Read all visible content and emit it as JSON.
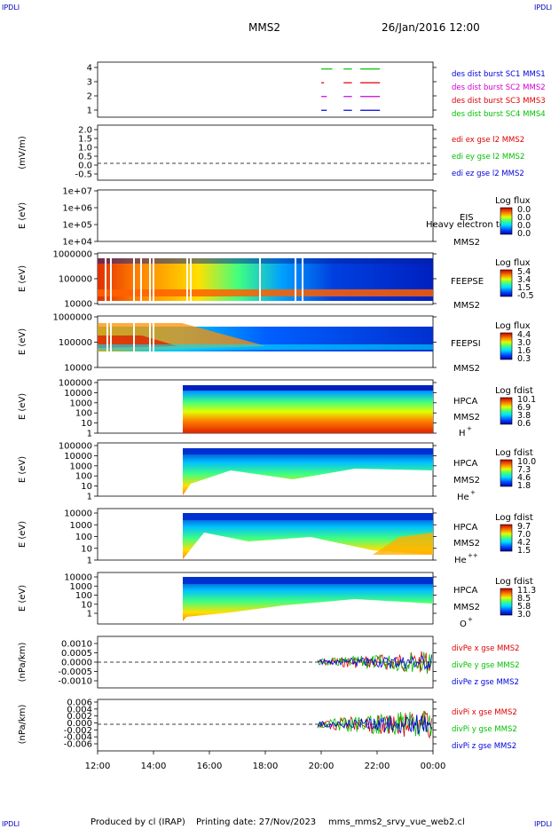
{
  "header": {
    "corner_tl": "IPDLI",
    "corner_tr": "IPDLI",
    "corner_bl": "IPDLI",
    "corner_br": "IPDLI",
    "title": "MMS2",
    "date": "26/Jan/2016 12:00"
  },
  "footer": {
    "produced": "Produced by cl (IRAP)",
    "printing": "Printing date: 27/Nov/2023",
    "file": "mms_mms2_srvy_vue_web2.cl"
  },
  "colors": {
    "red": "#e00000",
    "green": "#00c000",
    "blue": "#0000e0",
    "magenta": "#d000d0"
  },
  "chart_data": [
    {
      "type": "line",
      "panel": "des-dist-burst",
      "x_range": [
        "12:00",
        "00:00"
      ],
      "yticks": [
        "4",
        "3",
        "2",
        "1"
      ],
      "ylim": [
        0.5,
        4.5
      ],
      "legend": [
        {
          "label": "des dist burst SC1 MMS1",
          "color": "#0000e0"
        },
        {
          "label": "des dist burst SC2 MMS2",
          "color": "#d000d0"
        },
        {
          "label": "des dist burst SC3 MMS3",
          "color": "#e00000"
        },
        {
          "label": "des dist burst SC4 MMS4",
          "color": "#00c000"
        }
      ],
      "intervals": [
        {
          "y": 4,
          "color": "#00c000",
          "segments": [
            [
              20.0,
              20.4
            ],
            [
              20.8,
              21.1
            ],
            [
              21.4,
              22.1
            ]
          ]
        },
        {
          "y": 3,
          "color": "#e00000",
          "segments": [
            [
              20.0,
              20.1
            ],
            [
              20.8,
              21.1
            ],
            [
              21.4,
              22.1
            ]
          ]
        },
        {
          "y": 2,
          "color": "#d000d0",
          "segments": [
            [
              20.0,
              20.2
            ],
            [
              20.8,
              21.1
            ],
            [
              21.4,
              22.1
            ]
          ]
        },
        {
          "y": 1,
          "color": "#0000e0",
          "segments": [
            [
              20.0,
              20.2
            ],
            [
              20.8,
              21.1
            ],
            [
              21.4,
              22.1
            ]
          ]
        }
      ]
    },
    {
      "type": "line",
      "panel": "edi",
      "ylabel": "(mV/m)",
      "yticks": [
        "2.0",
        "1.5",
        "1.0",
        "0.5",
        "0.0",
        "-0.5"
      ],
      "ylim": [
        -0.7,
        2.0
      ],
      "legend": [
        {
          "label": "edi ex gse l2 MMS2",
          "color": "#e00000"
        },
        {
          "label": "edi ey gse l2 MMS2",
          "color": "#00c000"
        },
        {
          "label": "edi ez gse l2 MMS2",
          "color": "#0000e0"
        }
      ]
    },
    {
      "type": "heatmap",
      "panel": "eis",
      "ylabel": "E (eV)",
      "yticks": [
        "1e+07",
        "1e+06",
        "1e+05",
        "1e+04"
      ],
      "labels": [
        "EIS",
        "Heavy electron to",
        "MMS2"
      ],
      "cbar_title": "Log flux",
      "cbar_ticks": [
        "0.0",
        "0.0",
        "0.0",
        "0.0"
      ]
    },
    {
      "type": "heatmap",
      "panel": "feepse",
      "ylabel": "E (eV)",
      "yticks": [
        "1000000",
        "100000",
        "10000"
      ],
      "labels": [
        "FEEPSE",
        "MMS2"
      ],
      "cbar_title": "Log flux",
      "cbar_ticks": [
        "5.4",
        "3.4",
        "1.5",
        "-0.5"
      ]
    },
    {
      "type": "heatmap",
      "panel": "feepsi",
      "ylabel": "E (eV)",
      "yticks": [
        "1000000",
        "100000",
        "10000"
      ],
      "labels": [
        "FEEPSI",
        "MMS2"
      ],
      "cbar_title": "Log flux",
      "cbar_ticks": [
        "4.4",
        "3.0",
        "1.6",
        "0.3"
      ]
    },
    {
      "type": "heatmap",
      "panel": "hpca-h",
      "ylabel": "E (eV)",
      "yticks": [
        "100000",
        "10000",
        "1000",
        "100",
        "10",
        "1"
      ],
      "labels": [
        "HPCA",
        "MMS2",
        "H",
        "+"
      ],
      "cbar_title": "Log fdist",
      "cbar_ticks": [
        "10.1",
        "6.9",
        "3.8",
        "0.6"
      ]
    },
    {
      "type": "heatmap",
      "panel": "hpca-he",
      "ylabel": "E (eV)",
      "yticks": [
        "100000",
        "10000",
        "1000",
        "100",
        "10",
        "1"
      ],
      "labels": [
        "HPCA",
        "MMS2",
        "He",
        "+"
      ],
      "cbar_title": "Log fdist",
      "cbar_ticks": [
        "10.0",
        "7.3",
        "4.6",
        "1.8"
      ]
    },
    {
      "type": "heatmap",
      "panel": "hpca-hepp",
      "ylabel": "E (eV)",
      "yticks": [
        "10000",
        "1000",
        "100",
        "10",
        "1"
      ],
      "labels": [
        "HPCA",
        "MMS2",
        "He",
        "++"
      ],
      "cbar_title": "Log fdist",
      "cbar_ticks": [
        "9.7",
        "7.0",
        "4.2",
        "1.5"
      ]
    },
    {
      "type": "heatmap",
      "panel": "hpca-o",
      "ylabel": "E (eV)",
      "yticks": [
        "10000",
        "1000",
        "100",
        "10",
        "1"
      ],
      "labels": [
        "HPCA",
        "MMS2",
        "O",
        "+"
      ],
      "cbar_title": "Log fdist",
      "cbar_ticks": [
        "11.3",
        "8.5",
        "5.8",
        "3.0"
      ]
    },
    {
      "type": "line",
      "panel": "divpe",
      "ylabel": "(nPa/km)",
      "yticks": [
        "0.0010",
        "0.0005",
        "0.0000",
        "-0.0005",
        "-0.0010"
      ],
      "legend": [
        {
          "label": "divPe x gse MMS2",
          "color": "#e00000"
        },
        {
          "label": "divPe y gse MMS2",
          "color": "#00c000"
        },
        {
          "label": "divPe z gse MMS2",
          "color": "#0000e0"
        }
      ]
    },
    {
      "type": "line",
      "panel": "divpi",
      "ylabel": "(nPa/km)",
      "yticks": [
        "0.006",
        "0.004",
        "0.002",
        "0.000",
        "-0.002",
        "-0.004",
        "-0.006"
      ],
      "legend": [
        {
          "label": "divPi x gse MMS2",
          "color": "#e00000"
        },
        {
          "label": "divPi y gse MMS2",
          "color": "#00c000"
        },
        {
          "label": "divPi z gse MMS2",
          "color": "#0000e0"
        }
      ]
    }
  ],
  "xaxis": {
    "ticks": [
      "12:00",
      "14:00",
      "16:00",
      "18:00",
      "20:00",
      "22:00",
      "00:00"
    ]
  }
}
